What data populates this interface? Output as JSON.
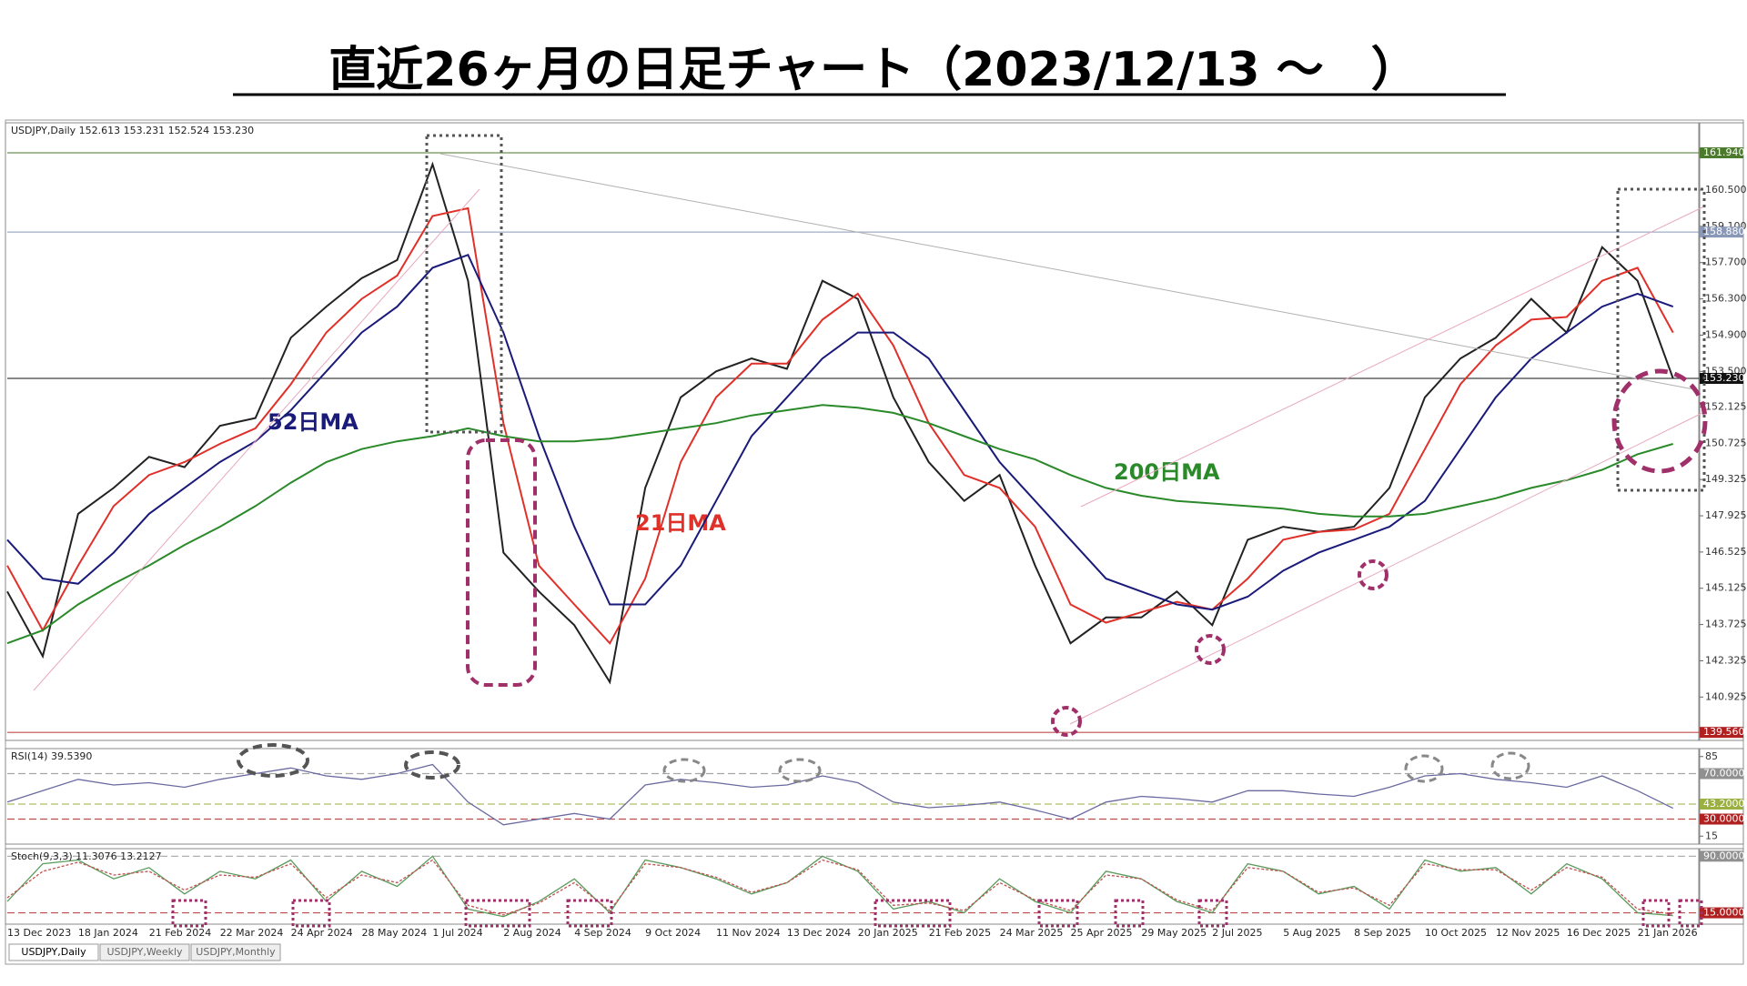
{
  "header": {
    "title": "直近26ヶ月の日足チャート（2023/12/13 ～　）"
  },
  "tabs": [
    "USDJPY,Daily",
    "USDJPY,Weekly",
    "USDJPY,Monthly"
  ],
  "chart_data": [
    {
      "type": "line",
      "title": "USDJPY,Daily  152.613 153.231 152.524 153.230",
      "categories": [
        "13 Dec 2023",
        null,
        "18 Jan 2024",
        null,
        "21 Feb 2024",
        null,
        "22 Mar 2024",
        null,
        "24 Apr 2024",
        null,
        "28 May 2024",
        null,
        "1 Jul 2024",
        null,
        "2 Aug 2024",
        null,
        "4 Sep 2024",
        null,
        "9 Oct 2024",
        null,
        "11 Nov 2024",
        null,
        "13 Dec 2024",
        null,
        "20 Jan 2025",
        null,
        "21 Feb 2025",
        null,
        "24 Mar 2025",
        null,
        "25 Apr 2025",
        null,
        "29 May 2025",
        null,
        "2 Jul 2025",
        null,
        "5 Aug 2025",
        null,
        "8 Sep 2025",
        null,
        "10 Oct 2025",
        null,
        "12 Nov 2025",
        null,
        "16 Dec 2025",
        null,
        "21 Jan 2026",
        null
      ],
      "series": [
        {
          "color": "#222222",
          "values": [
            145.0,
            142.5,
            148.0,
            149.0,
            150.2,
            149.8,
            151.4,
            151.7,
            154.8,
            156.0,
            157.1,
            157.8,
            161.5,
            157.0,
            146.5,
            145.0,
            143.7,
            141.5,
            149.0,
            152.5,
            153.5,
            154.0,
            153.6,
            157.0,
            156.3,
            152.5,
            150.0,
            148.5,
            149.5,
            146.0,
            143.0,
            144.0,
            144.0,
            145.0,
            143.7,
            147.0,
            147.5,
            147.3,
            147.5,
            149.0,
            152.5,
            154.0,
            154.8,
            156.3,
            155.0,
            158.3,
            157.0,
            153.23
          ]
        },
        {
          "name": "21日MA",
          "color": "#e0302a",
          "values": [
            146.0,
            143.5,
            146.0,
            148.3,
            149.5,
            150.0,
            150.7,
            151.3,
            153.0,
            155.0,
            156.3,
            157.2,
            159.5,
            159.8,
            151.5,
            146.0,
            144.5,
            143.0,
            145.5,
            150.0,
            152.5,
            153.8,
            153.8,
            155.5,
            156.5,
            154.5,
            151.5,
            149.5,
            149.0,
            147.5,
            144.5,
            143.8,
            144.2,
            144.6,
            144.3,
            145.5,
            147.0,
            147.3,
            147.4,
            148.0,
            150.5,
            153.0,
            154.5,
            155.5,
            155.6,
            157.0,
            157.5,
            155.0
          ]
        },
        {
          "name": "52日MA",
          "color": "#1a1a7a",
          "values": [
            147.0,
            145.5,
            145.3,
            146.5,
            148.0,
            149.0,
            150.0,
            150.8,
            152.0,
            153.5,
            155.0,
            156.0,
            157.5,
            158.0,
            155.0,
            151.0,
            147.5,
            144.5,
            144.5,
            146.0,
            148.5,
            151.0,
            152.5,
            154.0,
            155.0,
            155.0,
            154.0,
            152.0,
            150.0,
            148.5,
            147.0,
            145.5,
            145.0,
            144.5,
            144.3,
            144.8,
            145.8,
            146.5,
            147.0,
            147.5,
            148.5,
            150.5,
            152.5,
            154.0,
            155.0,
            156.0,
            156.5,
            156.0
          ]
        },
        {
          "name": "200日MA",
          "color": "#2a8a2a",
          "values": [
            143.0,
            143.5,
            144.5,
            145.3,
            146.0,
            146.8,
            147.5,
            148.3,
            149.2,
            150.0,
            150.5,
            150.8,
            151.0,
            151.3,
            151.0,
            150.8,
            150.8,
            150.9,
            151.1,
            151.3,
            151.5,
            151.8,
            152.0,
            152.2,
            152.1,
            151.9,
            151.5,
            151.0,
            150.5,
            150.1,
            149.5,
            149.0,
            148.7,
            148.5,
            148.4,
            148.3,
            148.2,
            148.0,
            147.9,
            147.9,
            148.0,
            148.3,
            148.6,
            149.0,
            149.3,
            149.7,
            150.3,
            150.7
          ]
        }
      ],
      "ylim": [
        139.25,
        163.1
      ],
      "yticks": [
        140.925,
        142.325,
        143.725,
        145.125,
        146.525,
        147.925,
        149.325,
        150.725,
        152.125,
        {
          "value": 153.5,
          "label": "153.500"
        },
        {
          "value": 154.9,
          "label": "154.900"
        },
        {
          "value": 156.3,
          "label": "156.300"
        },
        {
          "value": 157.7,
          "label": "157.700"
        },
        {
          "value": 159.1,
          "label": "159.100"
        },
        {
          "value": 160.5,
          "label": "160.500"
        }
      ],
      "levels": [
        {
          "value": 161.94,
          "label": "161.940",
          "color": "#4a7a2a"
        },
        {
          "value": 158.88,
          "label": "158.880",
          "color": "#8a98b8"
        },
        {
          "value": 153.23,
          "label": "153.230",
          "color": "#111111"
        },
        {
          "value": 139.56,
          "label": "139.560",
          "color": "#b02020"
        }
      ]
    },
    {
      "type": "line",
      "title": "RSI(14) 39.5390",
      "series": [
        {
          "color": "#6a6aa0",
          "values": [
            45,
            55,
            65,
            60,
            62,
            58,
            65,
            70,
            75,
            68,
            65,
            70,
            78,
            45,
            25,
            30,
            35,
            30,
            60,
            65,
            62,
            58,
            60,
            68,
            62,
            45,
            40,
            42,
            45,
            38,
            30,
            45,
            50,
            48,
            45,
            55,
            55,
            52,
            50,
            58,
            68,
            70,
            65,
            62,
            58,
            68,
            55,
            39.539
          ]
        }
      ],
      "ylim": [
        8,
        92
      ],
      "yticks": [
        85,
        15
      ],
      "levels": [
        {
          "value": 70,
          "label": "70.0000",
          "color": "#909090"
        },
        {
          "value": 43.2,
          "label": "43.2000",
          "color": "#9ab040"
        },
        {
          "value": 30,
          "label": "30.0000",
          "color": "#b02020"
        }
      ]
    },
    {
      "type": "line",
      "title": "Stoch(9,3,3) 11.3076 13.2127",
      "series": [
        {
          "color": "#5a9a5a",
          "values": [
            30,
            80,
            85,
            60,
            75,
            40,
            70,
            60,
            85,
            30,
            70,
            50,
            90,
            20,
            10,
            30,
            60,
            15,
            85,
            75,
            60,
            40,
            55,
            90,
            70,
            20,
            30,
            15,
            60,
            30,
            15,
            70,
            60,
            30,
            15,
            80,
            70,
            40,
            50,
            20,
            85,
            70,
            75,
            40,
            80,
            60,
            15,
            11.3076
          ]
        },
        {
          "color": "#c05050",
          "dash": true,
          "values": [
            35,
            70,
            82,
            65,
            70,
            45,
            65,
            62,
            80,
            35,
            65,
            55,
            85,
            25,
            12,
            28,
            55,
            18,
            80,
            75,
            62,
            42,
            55,
            85,
            72,
            25,
            28,
            18,
            55,
            32,
            18,
            65,
            60,
            32,
            18,
            75,
            70,
            42,
            48,
            25,
            80,
            72,
            72,
            45,
            75,
            62,
            20,
            13.2127
          ]
        }
      ],
      "ylim": [
        0,
        100
      ],
      "levels": [
        {
          "value": 90,
          "label": "90.0000",
          "color": "#909090"
        },
        {
          "value": 15,
          "label": "15.0000",
          "color": "#b02020"
        }
      ]
    }
  ]
}
